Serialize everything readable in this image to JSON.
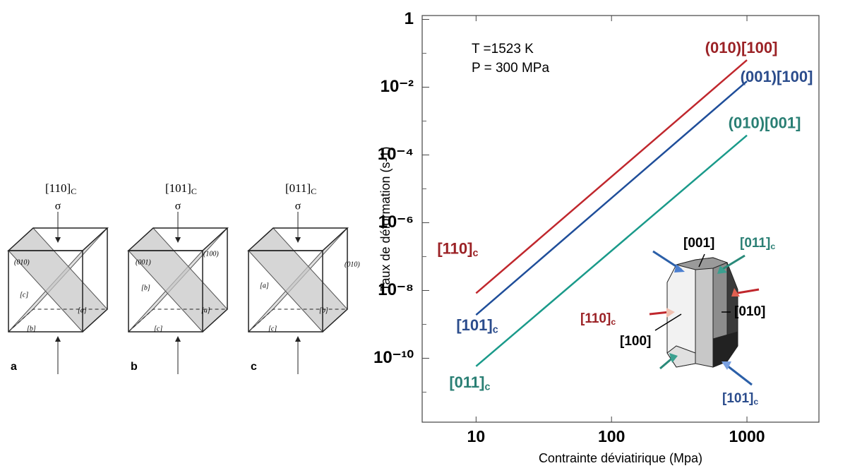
{
  "chart_data": {
    "type": "line",
    "xlabel": "Contrainte déviatirique (Mpa)",
    "ylabel": "Taux de déformation (s-1)",
    "annotations": [
      "T =1523 K",
      "P = 300 MPa"
    ],
    "x": [
      10,
      1000
    ],
    "series": [
      {
        "name": "(010)[100]",
        "color": "#c0272d",
        "label_color": "#9b2226",
        "values": [
          8.3e-09,
          0.063
        ],
        "start_label": {
          "text": "[110]",
          "sub": "c"
        }
      },
      {
        "name": "(001)[100]",
        "color": "#1f4e9a",
        "label_color": "#2b4c8c",
        "values": [
          1.9e-09,
          0.015
        ],
        "start_label": {
          "text": "[101]",
          "sub": "c"
        }
      },
      {
        "name": "(010)[001]",
        "color": "#1a9a8a",
        "label_color": "#2a7f74",
        "values": [
          5.8e-11,
          0.00038
        ],
        "start_label": {
          "text": "[011]",
          "sub": "c"
        }
      }
    ],
    "log_x": true,
    "log_y": true,
    "xlim": [
      4,
      3400
    ],
    "ylim": [
      1.3e-12,
      1.3
    ],
    "xticks": [
      10,
      100,
      1000
    ],
    "yticks": [
      1,
      {
        "value": 0.01,
        "label": "10⁻²"
      },
      {
        "value": 0.0001,
        "label": "10⁻⁴"
      },
      {
        "value": 1e-06,
        "label": "10⁻⁶"
      },
      {
        "value": 1e-08,
        "label": "10⁻⁸"
      },
      {
        "value": 1e-10,
        "label": "10⁻¹⁰"
      }
    ],
    "yminor": [
      0.1,
      0.001,
      1e-05,
      1e-07,
      1e-09,
      1e-11
    ]
  },
  "inset": {
    "labels": [
      {
        "text": "[001]"
      },
      {
        "text": "[011]",
        "sub": "c"
      },
      {
        "text": "[010]"
      },
      {
        "text": "[110]",
        "sub": "c"
      },
      {
        "text": "[100]"
      },
      {
        "text": "[101]",
        "sub": "c"
      }
    ]
  },
  "diagrams": [
    {
      "direction": {
        "text": "[110]",
        "sub": "C"
      },
      "sigma": "σ",
      "letter": "a",
      "labels": [
        "(010)",
        "[c]",
        "[a]",
        "[b]"
      ]
    },
    {
      "direction": {
        "text": "[101]",
        "sub": "C"
      },
      "sigma": "σ",
      "letter": "b",
      "labels": [
        "(001)",
        "(100)",
        "[b]",
        "[a]",
        "[c]"
      ]
    },
    {
      "direction": {
        "text": "[011]",
        "sub": "C"
      },
      "sigma": "σ",
      "letter": "c",
      "labels": [
        "[a]",
        "(010)",
        "[b]",
        "[c]"
      ]
    }
  ]
}
